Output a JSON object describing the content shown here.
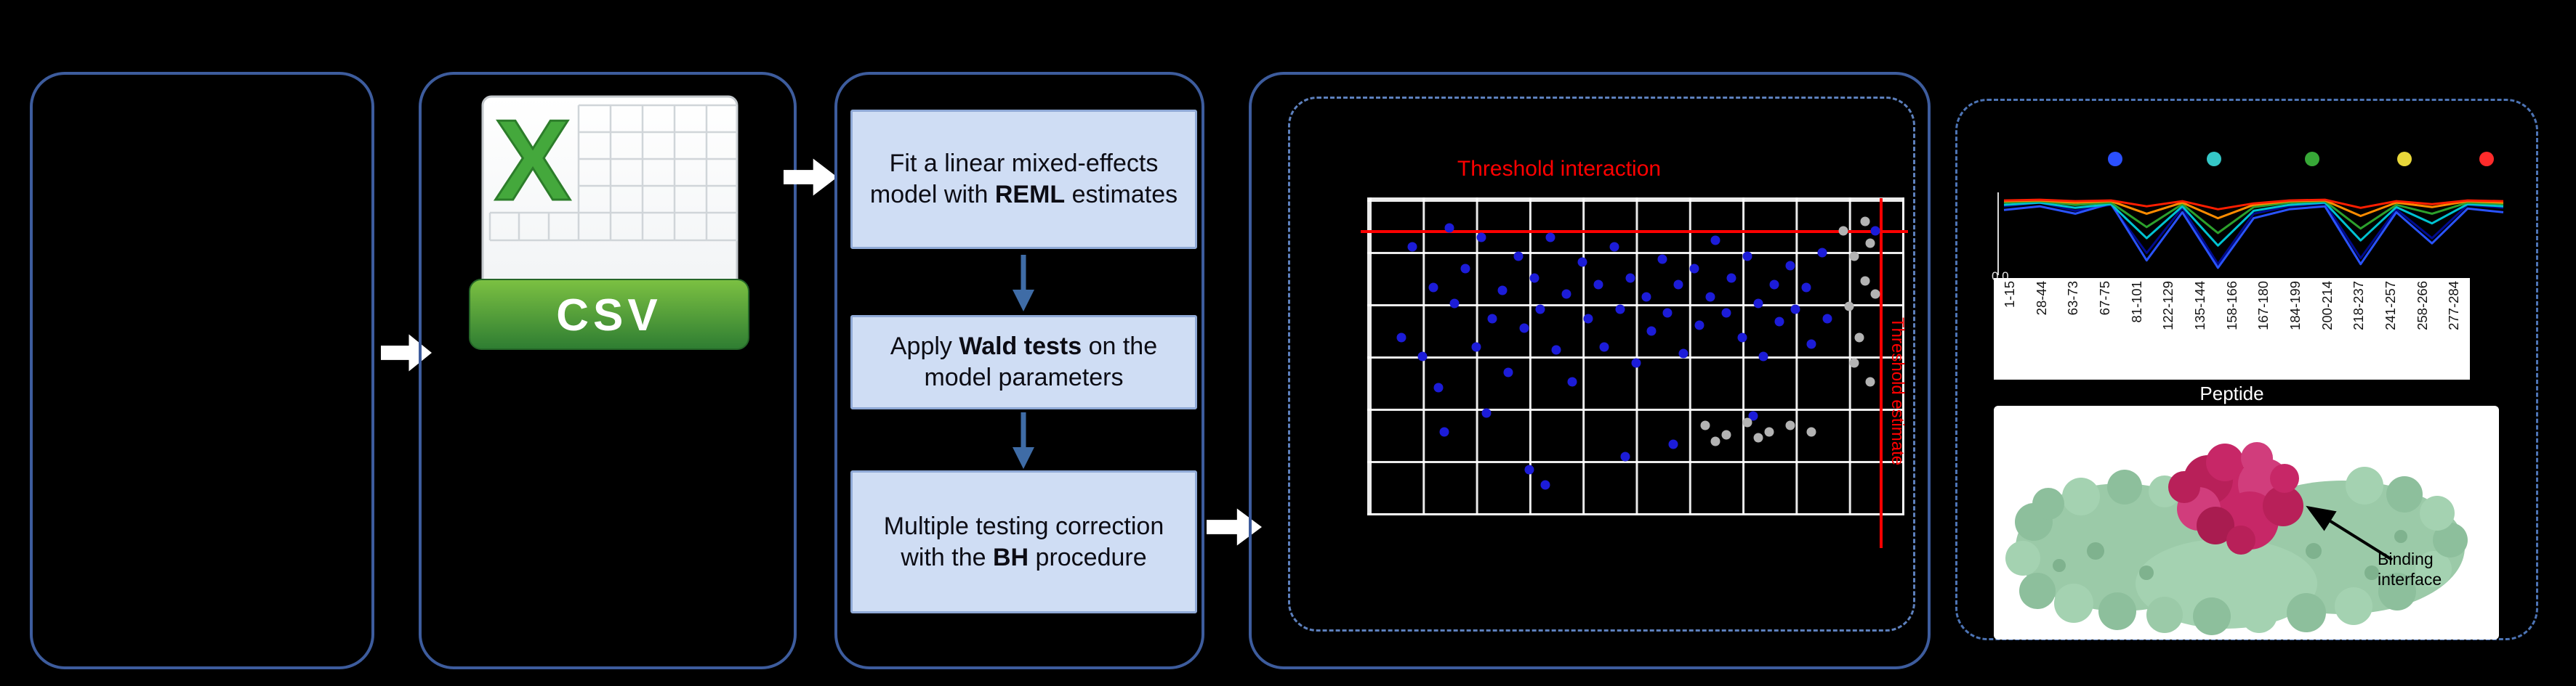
{
  "colors": {
    "panel_border": "#3d5c9d",
    "dashed_border": "#4d74b5",
    "step_fill": "#cfddf4",
    "threshold_red": "#ff0000",
    "blue_dot": "#1c1cd8",
    "gray_dot": "#b3b3b3"
  },
  "csv_icon": {
    "letter": "X",
    "label": "CSV"
  },
  "pipeline": {
    "steps": [
      {
        "pre": "Fit a linear mixed-effects model with ",
        "bold": "REML",
        "post": " estimates"
      },
      {
        "pre": "Apply ",
        "bold": "Wald tests",
        "post": " on the model parameters"
      },
      {
        "pre": "Multiple testing correction with the ",
        "bold": "BH",
        "post": " procedure"
      }
    ]
  },
  "hdx": {
    "binding_annotation": "Binding interface"
  },
  "chart_data": [
    {
      "type": "scatter",
      "title": "Threshold interaction",
      "vertical_label": "Threshold estimate",
      "x_threshold_frac": 0.95,
      "y_threshold_frac": 0.1,
      "point_colors": {
        "b": "#1c1cd8",
        "g": "#b3b3b3"
      },
      "points": [
        [
          6,
          44,
          "b"
        ],
        [
          8,
          15,
          "b"
        ],
        [
          10,
          50,
          "b"
        ],
        [
          12,
          28,
          "b"
        ],
        [
          13,
          60,
          "b"
        ],
        [
          15,
          9,
          "b"
        ],
        [
          16,
          33,
          "b"
        ],
        [
          18,
          22,
          "b"
        ],
        [
          20,
          47,
          "b"
        ],
        [
          21,
          12,
          "b"
        ],
        [
          23,
          38,
          "b"
        ],
        [
          25,
          29,
          "b"
        ],
        [
          26,
          55,
          "b"
        ],
        [
          28,
          18,
          "b"
        ],
        [
          29,
          41,
          "b"
        ],
        [
          31,
          25,
          "b"
        ],
        [
          32,
          35,
          "b"
        ],
        [
          34,
          12,
          "b"
        ],
        [
          35,
          48,
          "b"
        ],
        [
          37,
          30,
          "b"
        ],
        [
          38,
          58,
          "b"
        ],
        [
          40,
          20,
          "b"
        ],
        [
          41,
          38,
          "b"
        ],
        [
          43,
          27,
          "b"
        ],
        [
          44,
          47,
          "b"
        ],
        [
          46,
          15,
          "b"
        ],
        [
          47,
          35,
          "b"
        ],
        [
          49,
          25,
          "b"
        ],
        [
          50,
          52,
          "b"
        ],
        [
          52,
          31,
          "b"
        ],
        [
          53,
          42,
          "b"
        ],
        [
          55,
          19,
          "b"
        ],
        [
          56,
          36,
          "b"
        ],
        [
          58,
          27,
          "b"
        ],
        [
          59,
          49,
          "b"
        ],
        [
          61,
          22,
          "b"
        ],
        [
          62,
          40,
          "b"
        ],
        [
          64,
          31,
          "b"
        ],
        [
          65,
          13,
          "b"
        ],
        [
          67,
          36,
          "b"
        ],
        [
          68,
          25,
          "b"
        ],
        [
          70,
          44,
          "b"
        ],
        [
          71,
          18,
          "b"
        ],
        [
          73,
          33,
          "b"
        ],
        [
          74,
          50,
          "b"
        ],
        [
          76,
          27,
          "b"
        ],
        [
          77,
          39,
          "b"
        ],
        [
          79,
          21,
          "b"
        ],
        [
          80,
          35,
          "b"
        ],
        [
          82,
          28,
          "b"
        ],
        [
          83,
          46,
          "b"
        ],
        [
          85,
          17,
          "b"
        ],
        [
          86,
          38,
          "b"
        ],
        [
          30,
          86,
          "b"
        ],
        [
          33,
          91,
          "b"
        ],
        [
          48,
          82,
          "b"
        ],
        [
          14,
          74,
          "b"
        ],
        [
          57,
          78,
          "b"
        ],
        [
          72,
          69,
          "b"
        ],
        [
          22,
          68,
          "b"
        ],
        [
          95,
          10,
          "b"
        ],
        [
          89,
          10,
          "g"
        ],
        [
          91,
          18,
          "g"
        ],
        [
          93,
          26,
          "g"
        ],
        [
          90,
          34,
          "g"
        ],
        [
          92,
          44,
          "g"
        ],
        [
          94,
          14,
          "g"
        ],
        [
          91,
          52,
          "g"
        ],
        [
          93,
          7,
          "g"
        ],
        [
          95,
          30,
          "g"
        ],
        [
          94,
          58,
          "g"
        ],
        [
          63,
          72,
          "g"
        ],
        [
          67,
          75,
          "g"
        ],
        [
          71,
          71,
          "g"
        ],
        [
          75,
          74,
          "g"
        ],
        [
          79,
          72,
          "g"
        ],
        [
          83,
          74,
          "g"
        ],
        [
          65,
          77,
          "g"
        ],
        [
          73,
          76,
          "g"
        ]
      ]
    },
    {
      "type": "line",
      "xlabel": "Peptide",
      "yticks": [
        "0.0"
      ],
      "categories": [
        "1-15",
        "28-44",
        "63-73",
        "67-75",
        "81-101",
        "122-129",
        "135-144",
        "158-166",
        "167-180",
        "184-199",
        "200-214",
        "218-237",
        "241-257",
        "258-266",
        "277-284"
      ],
      "legend_dots": [
        "#2b50ff",
        "#35c7c7",
        "#37a837",
        "#e8d73a",
        "#ff2b2b"
      ],
      "series": [
        {
          "name": "navy",
          "color": "#000a8c",
          "values": [
            0.88,
            0.93,
            0.82,
            0.9,
            0.25,
            0.86,
            0.1,
            0.78,
            0.88,
            0.92,
            0.18,
            0.84,
            0.45,
            0.9,
            0.86
          ]
        },
        {
          "name": "blue",
          "color": "#2953ff",
          "values": [
            0.83,
            0.88,
            0.78,
            0.92,
            0.15,
            0.8,
            0.05,
            0.72,
            0.84,
            0.88,
            0.1,
            0.8,
            0.38,
            0.85,
            0.8
          ]
        },
        {
          "name": "cyan",
          "color": "#00c2d1",
          "values": [
            0.9,
            0.93,
            0.86,
            0.91,
            0.45,
            0.88,
            0.35,
            0.82,
            0.9,
            0.93,
            0.42,
            0.87,
            0.65,
            0.91,
            0.88
          ]
        },
        {
          "name": "green",
          "color": "#2ca02c",
          "values": [
            0.93,
            0.95,
            0.9,
            0.93,
            0.6,
            0.91,
            0.52,
            0.87,
            0.93,
            0.95,
            0.58,
            0.9,
            0.78,
            0.93,
            0.91
          ]
        },
        {
          "name": "orange",
          "color": "#ff8c00",
          "values": [
            0.95,
            0.96,
            0.93,
            0.95,
            0.78,
            0.93,
            0.72,
            0.9,
            0.95,
            0.96,
            0.75,
            0.93,
            0.87,
            0.95,
            0.93
          ]
        },
        {
          "name": "red",
          "color": "#ff1e00",
          "values": [
            0.96,
            0.97,
            0.95,
            0.96,
            0.88,
            0.95,
            0.84,
            0.92,
            0.96,
            0.97,
            0.86,
            0.95,
            0.91,
            0.96,
            0.95
          ]
        }
      ]
    }
  ]
}
